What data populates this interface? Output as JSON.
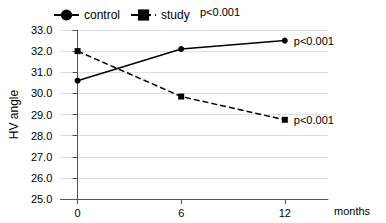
{
  "chart_data": {
    "type": "line",
    "x": [
      0,
      6,
      12
    ],
    "xlabel": "months",
    "ylabel": "HV angle",
    "series": [
      {
        "name": "control",
        "color": "#000000",
        "marker": "circle",
        "line_style": "solid",
        "values": [
          30.6,
          32.1,
          32.5
        ]
      },
      {
        "name": "study",
        "color": "#000000",
        "marker": "square",
        "line_style": "dashed",
        "values": [
          32.0,
          29.85,
          28.75
        ]
      }
    ],
    "xlim": [
      -1.0,
      14.5
    ],
    "xticks": [
      0,
      6,
      12
    ],
    "ylim": [
      25.0,
      33.0
    ],
    "yticks": [
      {
        "value": 25.0,
        "label": "25.0"
      },
      {
        "value": 26.0,
        "label": "26.0"
      },
      {
        "value": 27.0,
        "label": "27.0"
      },
      {
        "value": 28.0,
        "label": "28.0"
      },
      {
        "value": 29.0,
        "label": "29.0"
      },
      {
        "value": 30.0,
        "label": "30.0"
      },
      {
        "value": 31.0,
        "label": "31.0"
      },
      {
        "value": 32.0,
        "label": "32.0"
      },
      {
        "value": 33.0,
        "label": "33.0"
      }
    ],
    "grid": true,
    "legend": "upper left",
    "annotations": [
      "p<0.001",
      "p<0.001",
      "p<0.001"
    ]
  }
}
